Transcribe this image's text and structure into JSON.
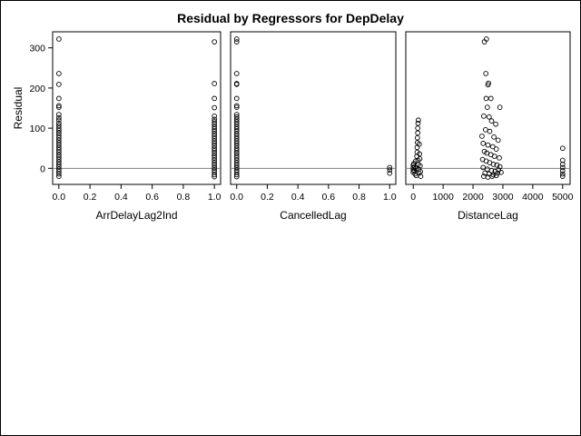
{
  "chart_data": {
    "type": "scatter",
    "title": "Residual by Regressors for DepDelay",
    "ylabel": "Residual",
    "ylim": [
      -40,
      340
    ],
    "yticks": [
      0,
      100,
      200,
      300
    ],
    "reference_line_y": 0,
    "reference_line_color": "#808080",
    "marker": "open-circle",
    "panels": [
      {
        "xlabel": "ArrDelayLag2Ind",
        "xlim": [
          -0.04,
          1.04
        ],
        "xticks": [
          "0.0",
          "0.2",
          "0.4",
          "0.6",
          "0.8",
          "1.0"
        ],
        "points": [
          {
            "x": 0,
            "y": 322
          },
          {
            "x": 0,
            "y": 236
          },
          {
            "x": 0,
            "y": 209
          },
          {
            "x": 0,
            "y": 174
          },
          {
            "x": 0,
            "y": 156
          },
          {
            "x": 0,
            "y": 152
          },
          {
            "x": 0,
            "y": 134
          },
          {
            "x": 0,
            "y": 126
          },
          {
            "x": 0,
            "y": 120
          },
          {
            "x": 0,
            "y": 112
          },
          {
            "x": 0,
            "y": 106
          },
          {
            "x": 0,
            "y": 100
          },
          {
            "x": 0,
            "y": 94
          },
          {
            "x": 0,
            "y": 88
          },
          {
            "x": 0,
            "y": 82
          },
          {
            "x": 0,
            "y": 76
          },
          {
            "x": 0,
            "y": 70
          },
          {
            "x": 0,
            "y": 64
          },
          {
            "x": 0,
            "y": 58
          },
          {
            "x": 0,
            "y": 52
          },
          {
            "x": 0,
            "y": 46
          },
          {
            "x": 0,
            "y": 40
          },
          {
            "x": 0,
            "y": 34
          },
          {
            "x": 0,
            "y": 28
          },
          {
            "x": 0,
            "y": 22
          },
          {
            "x": 0,
            "y": 16
          },
          {
            "x": 0,
            "y": 10
          },
          {
            "x": 0,
            "y": 4
          },
          {
            "x": 0,
            "y": -2
          },
          {
            "x": 0,
            "y": -8
          },
          {
            "x": 0,
            "y": -14
          },
          {
            "x": 0,
            "y": -20
          },
          {
            "x": 1,
            "y": 315
          },
          {
            "x": 1,
            "y": 211
          },
          {
            "x": 1,
            "y": 174
          },
          {
            "x": 1,
            "y": 151
          },
          {
            "x": 1,
            "y": 130
          },
          {
            "x": 1,
            "y": 122
          },
          {
            "x": 1,
            "y": 116
          },
          {
            "x": 1,
            "y": 110
          },
          {
            "x": 1,
            "y": 104
          },
          {
            "x": 1,
            "y": 98
          },
          {
            "x": 1,
            "y": 92
          },
          {
            "x": 1,
            "y": 86
          },
          {
            "x": 1,
            "y": 80
          },
          {
            "x": 1,
            "y": 74
          },
          {
            "x": 1,
            "y": 68
          },
          {
            "x": 1,
            "y": 62
          },
          {
            "x": 1,
            "y": 56
          },
          {
            "x": 1,
            "y": 50
          },
          {
            "x": 1,
            "y": 44
          },
          {
            "x": 1,
            "y": 38
          },
          {
            "x": 1,
            "y": 32
          },
          {
            "x": 1,
            "y": 26
          },
          {
            "x": 1,
            "y": 20
          },
          {
            "x": 1,
            "y": 14
          },
          {
            "x": 1,
            "y": 8
          },
          {
            "x": 1,
            "y": 2
          },
          {
            "x": 1,
            "y": -4
          },
          {
            "x": 1,
            "y": -10
          },
          {
            "x": 1,
            "y": -16
          },
          {
            "x": 1,
            "y": -21
          }
        ]
      },
      {
        "xlabel": "CancelledLag",
        "xlim": [
          -0.04,
          1.04
        ],
        "xticks": [
          "0.0",
          "0.2",
          "0.4",
          "0.6",
          "0.8",
          "1.0"
        ],
        "points": [
          {
            "x": 0,
            "y": 322
          },
          {
            "x": 0,
            "y": 315
          },
          {
            "x": 0,
            "y": 236
          },
          {
            "x": 0,
            "y": 211
          },
          {
            "x": 0,
            "y": 209
          },
          {
            "x": 0,
            "y": 174
          },
          {
            "x": 0,
            "y": 156
          },
          {
            "x": 0,
            "y": 152
          },
          {
            "x": 0,
            "y": 134
          },
          {
            "x": 0,
            "y": 128
          },
          {
            "x": 0,
            "y": 122
          },
          {
            "x": 0,
            "y": 116
          },
          {
            "x": 0,
            "y": 110
          },
          {
            "x": 0,
            "y": 104
          },
          {
            "x": 0,
            "y": 98
          },
          {
            "x": 0,
            "y": 92
          },
          {
            "x": 0,
            "y": 86
          },
          {
            "x": 0,
            "y": 80
          },
          {
            "x": 0,
            "y": 74
          },
          {
            "x": 0,
            "y": 68
          },
          {
            "x": 0,
            "y": 62
          },
          {
            "x": 0,
            "y": 56
          },
          {
            "x": 0,
            "y": 50
          },
          {
            "x": 0,
            "y": 44
          },
          {
            "x": 0,
            "y": 38
          },
          {
            "x": 0,
            "y": 32
          },
          {
            "x": 0,
            "y": 26
          },
          {
            "x": 0,
            "y": 20
          },
          {
            "x": 0,
            "y": 14
          },
          {
            "x": 0,
            "y": 8
          },
          {
            "x": 0,
            "y": 2
          },
          {
            "x": 0,
            "y": -4
          },
          {
            "x": 0,
            "y": -10
          },
          {
            "x": 0,
            "y": -16
          },
          {
            "x": 0,
            "y": -21
          },
          {
            "x": 1,
            "y": 2
          },
          {
            "x": 1,
            "y": -4
          },
          {
            "x": 1,
            "y": -12
          }
        ]
      },
      {
        "xlabel": "DistanceLag",
        "xlim": [
          -250,
          5250
        ],
        "xticks": [
          "0",
          "1000",
          "2000",
          "3000",
          "4000",
          "5000"
        ],
        "points": [
          {
            "x": 0,
            "y": 8
          },
          {
            "x": 0,
            "y": 2
          },
          {
            "x": 0,
            "y": -4
          },
          {
            "x": 0,
            "y": -10
          },
          {
            "x": 20,
            "y": 12
          },
          {
            "x": 30,
            "y": -6
          },
          {
            "x": 50,
            "y": 4
          },
          {
            "x": 60,
            "y": -14
          },
          {
            "x": 80,
            "y": 18
          },
          {
            "x": 90,
            "y": 0
          },
          {
            "x": 100,
            "y": -18
          },
          {
            "x": 120,
            "y": 30
          },
          {
            "x": 130,
            "y": 40
          },
          {
            "x": 130,
            "y": 52
          },
          {
            "x": 140,
            "y": 64
          },
          {
            "x": 140,
            "y": 76
          },
          {
            "x": 150,
            "y": 88
          },
          {
            "x": 150,
            "y": 100
          },
          {
            "x": 160,
            "y": 112
          },
          {
            "x": 170,
            "y": 120
          },
          {
            "x": 160,
            "y": 20
          },
          {
            "x": 170,
            "y": 10
          },
          {
            "x": 180,
            "y": -2
          },
          {
            "x": 190,
            "y": -12
          },
          {
            "x": 200,
            "y": 60
          },
          {
            "x": 210,
            "y": 36
          },
          {
            "x": 220,
            "y": 24
          },
          {
            "x": 230,
            "y": 6
          },
          {
            "x": 240,
            "y": -8
          },
          {
            "x": 250,
            "y": -20
          },
          {
            "x": 2380,
            "y": 315
          },
          {
            "x": 2450,
            "y": 322
          },
          {
            "x": 2430,
            "y": 236
          },
          {
            "x": 2520,
            "y": 212
          },
          {
            "x": 2500,
            "y": 208
          },
          {
            "x": 2440,
            "y": 174
          },
          {
            "x": 2600,
            "y": 174
          },
          {
            "x": 2480,
            "y": 152
          },
          {
            "x": 2900,
            "y": 152
          },
          {
            "x": 2360,
            "y": 130
          },
          {
            "x": 2540,
            "y": 128
          },
          {
            "x": 2620,
            "y": 118
          },
          {
            "x": 2760,
            "y": 110
          },
          {
            "x": 2420,
            "y": 96
          },
          {
            "x": 2560,
            "y": 92
          },
          {
            "x": 2300,
            "y": 80
          },
          {
            "x": 2700,
            "y": 78
          },
          {
            "x": 2840,
            "y": 70
          },
          {
            "x": 2340,
            "y": 62
          },
          {
            "x": 2500,
            "y": 58
          },
          {
            "x": 2660,
            "y": 54
          },
          {
            "x": 2780,
            "y": 48
          },
          {
            "x": 2380,
            "y": 42
          },
          {
            "x": 2460,
            "y": 38
          },
          {
            "x": 2600,
            "y": 34
          },
          {
            "x": 2720,
            "y": 30
          },
          {
            "x": 2880,
            "y": 26
          },
          {
            "x": 2320,
            "y": 22
          },
          {
            "x": 2440,
            "y": 18
          },
          {
            "x": 2560,
            "y": 14
          },
          {
            "x": 2680,
            "y": 10
          },
          {
            "x": 2800,
            "y": 8
          },
          {
            "x": 2900,
            "y": 4
          },
          {
            "x": 2340,
            "y": 2
          },
          {
            "x": 2480,
            "y": -2
          },
          {
            "x": 2620,
            "y": -6
          },
          {
            "x": 2740,
            "y": -8
          },
          {
            "x": 2860,
            "y": -4
          },
          {
            "x": 2400,
            "y": -12
          },
          {
            "x": 2540,
            "y": -14
          },
          {
            "x": 2680,
            "y": -16
          },
          {
            "x": 2820,
            "y": -12
          },
          {
            "x": 2360,
            "y": -20
          },
          {
            "x": 2500,
            "y": -22
          },
          {
            "x": 2640,
            "y": -20
          },
          {
            "x": 2780,
            "y": -18
          },
          {
            "x": 2940,
            "y": -10
          },
          {
            "x": 5000,
            "y": 50
          },
          {
            "x": 5000,
            "y": 20
          },
          {
            "x": 5000,
            "y": 10
          },
          {
            "x": 5000,
            "y": 2
          },
          {
            "x": 5000,
            "y": -6
          },
          {
            "x": 5000,
            "y": -14
          },
          {
            "x": 5000,
            "y": -20
          }
        ]
      }
    ]
  }
}
